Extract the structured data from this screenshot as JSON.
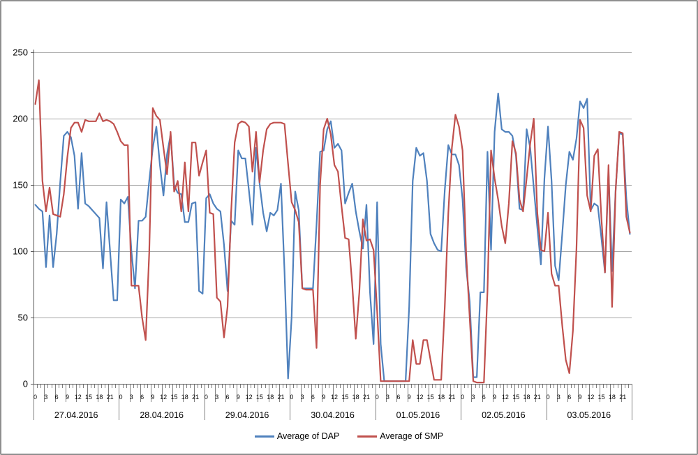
{
  "chart_data": {
    "type": "line",
    "title": "",
    "xlabel": "",
    "ylabel": "",
    "ylim": [
      0,
      250
    ],
    "yticks": [
      0,
      50,
      100,
      150,
      200,
      250
    ],
    "grid": true,
    "legend_position": "bottom",
    "days": [
      "27.04.2016",
      "28.04.2016",
      "29.04.2016",
      "30.04.2016",
      "01.05.2016",
      "02.05.2016",
      "03.05.2016"
    ],
    "hour_labels": [
      "0",
      "3",
      "6",
      "9",
      "12",
      "15",
      "18",
      "21"
    ],
    "hours_per_day": 24,
    "series": [
      {
        "name": "Average of DAP",
        "color": "#4F81BD",
        "values": [
          135,
          132,
          130,
          88,
          127,
          88,
          113,
          152,
          187,
          190,
          186,
          172,
          132,
          174,
          136,
          134,
          131,
          128,
          125,
          87,
          137,
          100,
          63,
          63,
          139,
          136,
          141,
          100,
          72,
          123,
          123,
          126,
          153,
          178,
          194,
          165,
          142,
          173,
          188,
          150,
          144,
          143,
          122,
          122,
          136,
          137,
          70,
          68,
          140,
          143,
          136,
          132,
          130,
          105,
          70,
          123,
          120,
          176,
          170,
          170,
          146,
          120,
          178,
          151,
          129,
          115,
          129,
          127,
          131,
          151,
          85,
          4,
          50,
          145,
          131,
          72,
          72,
          72,
          72,
          120,
          175,
          176,
          192,
          198,
          178,
          181,
          176,
          136,
          144,
          151,
          130,
          115,
          102,
          135,
          69,
          30,
          137,
          30,
          2,
          2,
          2,
          2,
          2,
          2,
          2,
          58,
          153,
          178,
          172,
          174,
          153,
          113,
          106,
          101,
          100,
          146,
          180,
          173,
          173,
          165,
          139,
          88,
          62,
          5,
          5,
          69,
          69,
          175,
          101,
          190,
          219,
          192,
          190,
          190,
          187,
          172,
          132,
          131,
          192,
          178,
          148,
          118,
          90,
          155,
          194,
          153,
          89,
          78,
          113,
          150,
          175,
          169,
          185,
          213,
          208,
          215,
          131,
          136,
          134,
          110,
          84,
          160,
          85,
          146,
          189,
          188,
          140,
          113
        ]
      },
      {
        "name": "Average of SMP",
        "color": "#C0504D",
        "values": [
          211,
          229,
          153,
          130,
          148,
          128,
          127,
          126,
          143,
          171,
          193,
          197,
          197,
          190,
          199,
          198,
          198,
          198,
          204,
          198,
          199,
          198,
          196,
          190,
          183,
          180,
          180,
          74,
          74,
          74,
          50,
          33,
          99,
          208,
          202,
          199,
          178,
          158,
          190,
          145,
          153,
          130,
          167,
          130,
          182,
          182,
          157,
          167,
          176,
          129,
          128,
          65,
          62,
          35,
          58,
          129,
          182,
          196,
          198,
          197,
          194,
          160,
          190,
          152,
          176,
          192,
          196,
          197,
          197,
          197,
          196,
          166,
          137,
          131,
          122,
          72,
          71,
          71,
          71,
          27,
          150,
          192,
          200,
          188,
          165,
          160,
          134,
          110,
          109,
          75,
          34,
          69,
          124,
          108,
          109,
          101,
          55,
          2,
          2,
          2,
          2,
          2,
          2,
          2,
          2,
          2,
          33,
          15,
          15,
          33,
          33,
          18,
          3,
          3,
          3,
          58,
          129,
          178,
          203,
          194,
          176,
          99,
          50,
          2,
          1,
          1,
          1,
          70,
          176,
          155,
          139,
          119,
          106,
          136,
          183,
          174,
          139,
          130,
          155,
          181,
          200,
          129,
          101,
          100,
          129,
          83,
          74,
          74,
          44,
          18,
          8,
          40,
          102,
          199,
          193,
          142,
          130,
          172,
          177,
          125,
          84,
          165,
          58,
          146,
          190,
          189,
          126,
          114
        ]
      }
    ],
    "colors": {
      "gridline": "#A6A6A6",
      "axis": "#595959",
      "tick": "#808080",
      "text": "#000000"
    }
  }
}
